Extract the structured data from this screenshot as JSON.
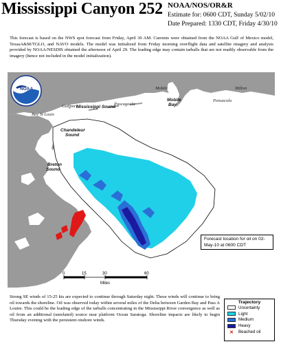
{
  "header": {
    "title": "Mississippi Canyon 252",
    "agency": "NOAA/NOS/OR&R",
    "estimate": "Estimate for: 0600 CDT, Sunday 5/02/10",
    "prepared": "Date Prepared: 1330 CDT, Friday 4/30/10"
  },
  "intro": "This forecast is based on the NWS spot forecast from Friday, April 30 AM. Currents were obtained from the NOAA Gulf of Mexico model, TexasA&M/TGLO, and NAVO models. The model was initialized from Friday morning overflight data and satellite imagery and analysis provided by NOAA/NESDIS obtained the afternoon of April 29. The leading edge may contain tarballs that are not readily observable from the imagery (hence not included in the model initialization).",
  "logo": {
    "text": "NOAA"
  },
  "map": {
    "places": {
      "mobile": "Mobile",
      "milton": "Milton",
      "pensacola": "Pensacola",
      "gulfport": "Gulfport",
      "mississippi_sound": "Mississippi Sound",
      "pascagoula": "Pascagoula",
      "mobile_bay": "Mobile Bay",
      "bay_st_louis": "Bay St Louis",
      "chandeleur_sound": "Chandeleur Sound",
      "breton_sound": "Breton Sound"
    },
    "scale": {
      "ticks": [
        "0",
        "15",
        "30",
        "60"
      ],
      "unit": "Miles"
    },
    "forecast_location": "Forecast location for oil on 02-May-10 at 0600 CDT"
  },
  "note": "Strong SE winds of 15-25 kts are expected to continue through Saturday night. These winds will continue to bring oil towards the shoreline. Oil was observed today within several miles of the Delta between Garden Bay and Pass A Loutre. This could be the leading edge of the tarballs concentrating in the Mississippi River convergence as well as oil from an additional (unrelated) source near platform Ocean Saratoga. Shoreline impacts are likely to begin Thursday evening with the persistent onshore winds.",
  "legend": {
    "title": "Trajectory",
    "items": [
      {
        "label": "Uncertainty",
        "color": "#ffffff"
      },
      {
        "label": "Light",
        "color": "#1fd0e8"
      },
      {
        "label": "Medium",
        "color": "#2a6fd6"
      },
      {
        "label": "Heavy",
        "color": "#1a1aa0"
      }
    ],
    "beached": {
      "label": "Beached oil",
      "color": "#d01010"
    }
  },
  "colors": {
    "land": "#9a9a9a",
    "water": "#ffffff",
    "beached": "#e01818"
  }
}
